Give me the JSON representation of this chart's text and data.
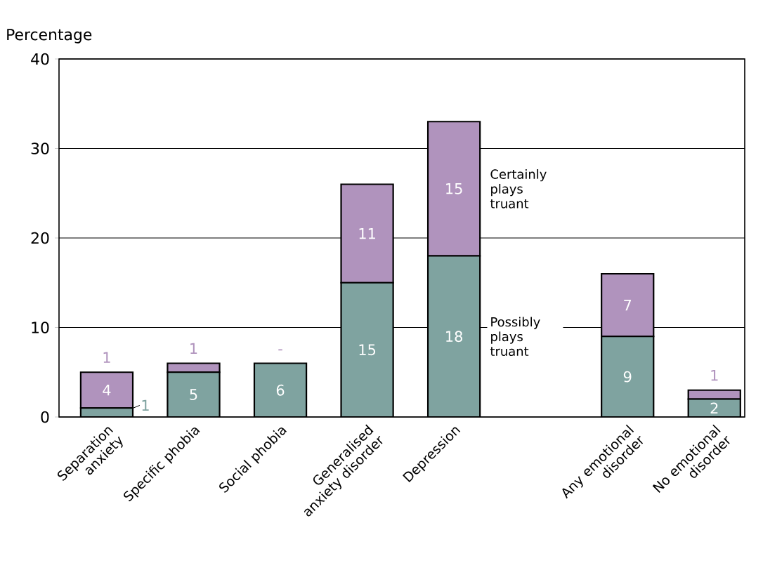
{
  "chart_data": {
    "type": "bar",
    "stacked": true,
    "ylabel": "Percentage",
    "categories": [
      "Separation anxiety",
      "Specific phobia",
      "Social phobia",
      "Generalised anxiety disorder",
      "Depression",
      null,
      "Any emotional disorder",
      "No emotional disorder"
    ],
    "series": [
      {
        "name": "Possibly plays truant",
        "color": "#7fa3a0",
        "values": [
          1,
          5,
          6,
          15,
          18,
          null,
          9,
          2
        ],
        "value_labels": [
          "1",
          "5",
          "6",
          "15",
          "18",
          null,
          "9",
          "2"
        ]
      },
      {
        "name": "Certainly plays truant",
        "color": "#b093bd",
        "values": [
          4,
          1,
          0,
          11,
          15,
          null,
          7,
          1
        ],
        "value_labels": [
          "4",
          "1",
          "-",
          "11",
          "15",
          null,
          "7",
          "1"
        ]
      }
    ],
    "annotations": [
      "1"
    ],
    "ylim": [
      0,
      40
    ],
    "yticks": [
      0,
      10,
      20,
      30,
      40
    ],
    "grid": "y"
  }
}
